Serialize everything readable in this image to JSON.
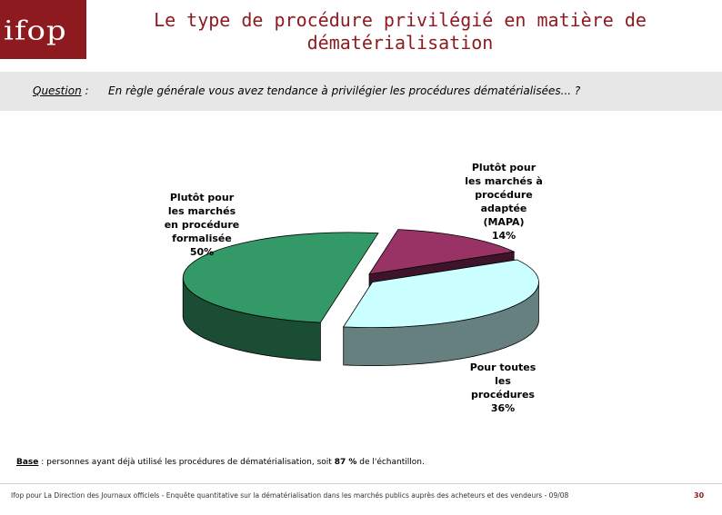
{
  "header": {
    "logo_text": "ifop",
    "title_line1": "Le type de procédure privilégié en matière de",
    "title_line2": "dématérialisation"
  },
  "question": {
    "label": "Question",
    "label_suffix": " :",
    "text": "En règle générale vous avez tendance à privilégier les procédures dématérialisées... ?"
  },
  "chart_data": {
    "type": "pie",
    "title": "",
    "slices": [
      {
        "lines": [
          "Plutôt pour",
          "les marchés à",
          "procédure",
          "adaptée",
          "(MAPA)"
        ],
        "value_label": "14%",
        "value": 14,
        "color": "#993366"
      },
      {
        "lines": [
          "Pour toutes",
          "les",
          "procédures"
        ],
        "value_label": "36%",
        "value": 36,
        "color": "#ccffff"
      },
      {
        "lines": [
          "Plutôt pour",
          "les marchés",
          "en procédure",
          "formalisée"
        ],
        "value_label": "50%",
        "value": 50,
        "color": "#339966"
      }
    ]
  },
  "base": {
    "label": "Base",
    "text_before": " : personnes ayant déjà utilisé les procédures de dématérialisation, soit ",
    "pct": "87 %",
    "text_after": " de l'échantillon."
  },
  "footer": {
    "text": "Ifop pour La Direction des Journaux officiels - Enquête quantitative sur la dématérialisation dans les marchés publics auprès des acheteurs et des vendeurs - 09/08",
    "page": "30"
  }
}
